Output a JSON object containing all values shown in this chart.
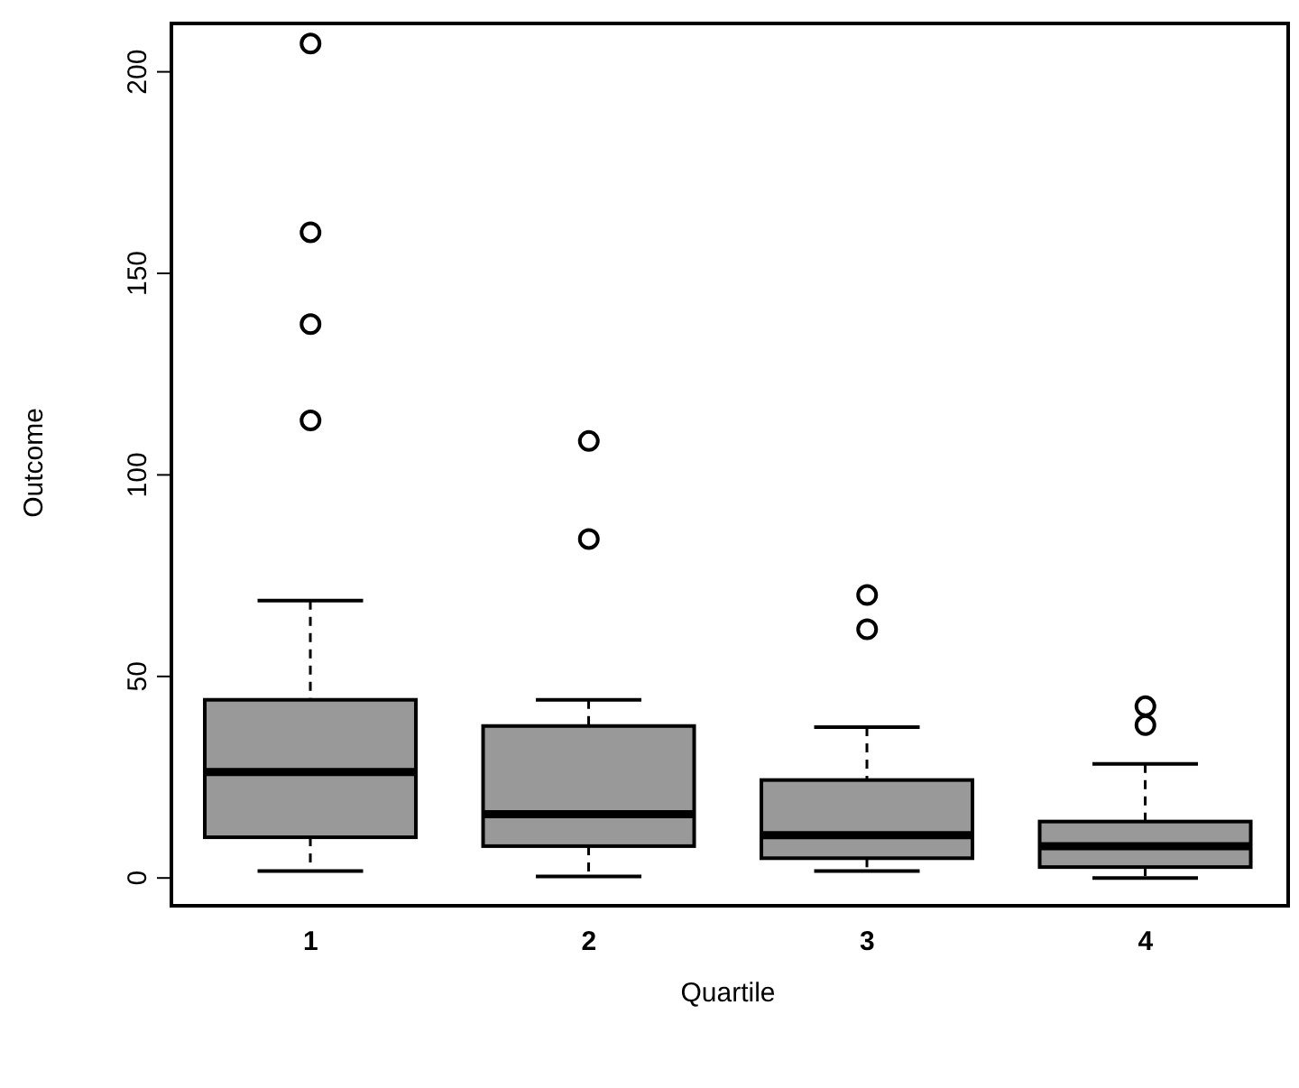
{
  "chart_data": {
    "type": "box",
    "xlabel": "Quartile",
    "ylabel": "Outcome",
    "categories": [
      "1",
      "2",
      "3",
      "4"
    ],
    "color": "#999999",
    "boxes": [
      {
        "low": 1.7,
        "q1": 10.1,
        "median": 26.3,
        "q3": 44.2,
        "high": 68.8,
        "outliers": [
          207,
          160.2,
          137.4,
          113.5
        ]
      },
      {
        "low": 0.4,
        "q1": 7.9,
        "median": 15.8,
        "q3": 37.7,
        "high": 44.2,
        "outliers": [
          108.4,
          84.1
        ]
      },
      {
        "low": 1.7,
        "q1": 4.9,
        "median": 10.6,
        "q3": 24.3,
        "high": 37.4,
        "outliers": [
          70.2,
          61.7
        ]
      },
      {
        "low": 0,
        "q1": 2.7,
        "median": 7.9,
        "q3": 14,
        "high": 28.3,
        "outliers": [
          42.6,
          37.9
        ]
      }
    ],
    "ylim": [
      -6,
      212
    ],
    "yticks": [
      0,
      50,
      100,
      150,
      200
    ]
  }
}
